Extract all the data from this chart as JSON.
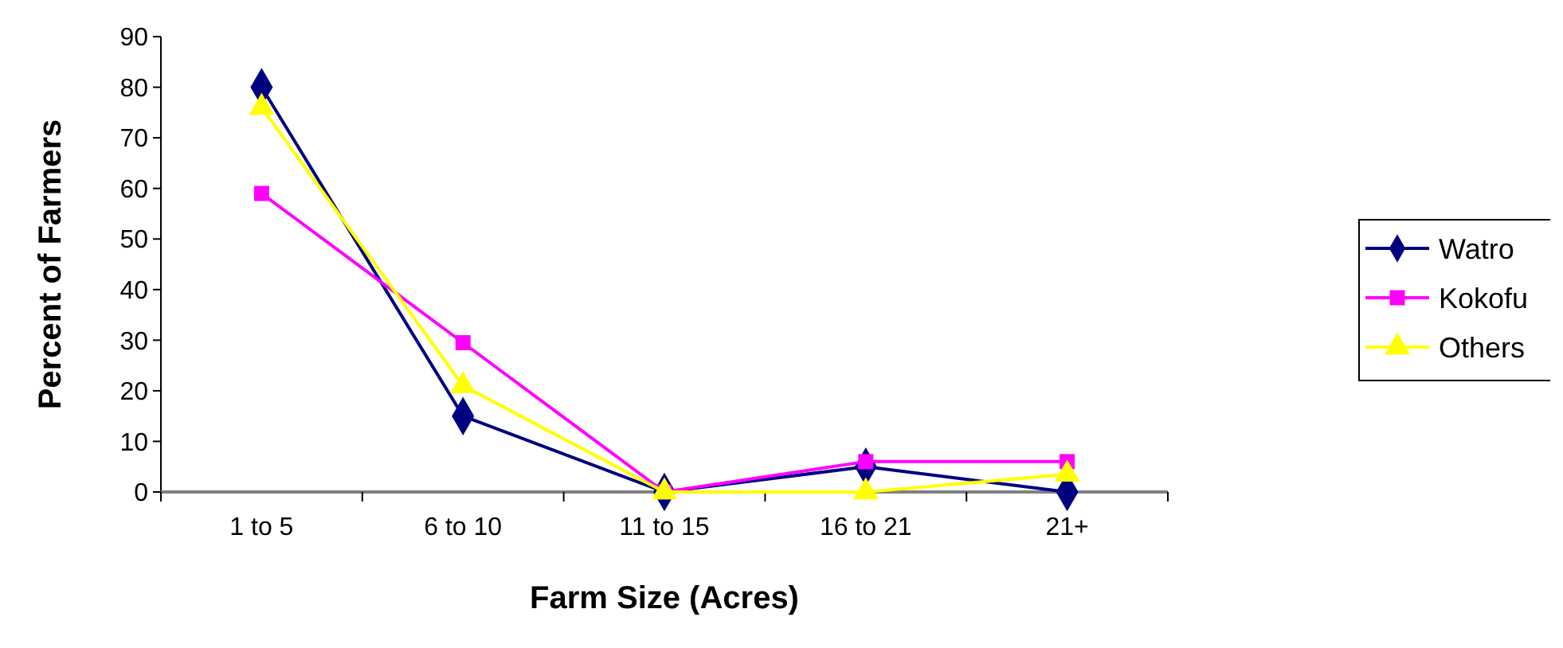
{
  "chart_data": {
    "type": "line",
    "xlabel": "Farm Size (Acres)",
    "ylabel": "Percent of Farmers",
    "categories": [
      "1 to 5",
      "6 to 10",
      "11 to 15",
      "16 to 21",
      "21+"
    ],
    "series": [
      {
        "name": "Watro",
        "color": "#000080",
        "marker": "diamond",
        "values": [
          80,
          15,
          0,
          5,
          0
        ]
      },
      {
        "name": "Kokofu",
        "color": "#ff00ff",
        "marker": "square",
        "values": [
          59,
          29.5,
          0,
          6,
          6
        ]
      },
      {
        "name": "Others",
        "color": "#ffff00",
        "marker": "triangle",
        "values": [
          76,
          21,
          0,
          0,
          3.5
        ]
      }
    ],
    "ylim": [
      0,
      90
    ],
    "yticks": [
      0,
      10,
      20,
      30,
      40,
      50,
      60,
      70,
      80,
      90
    ],
    "grid": false,
    "legend": "right"
  }
}
